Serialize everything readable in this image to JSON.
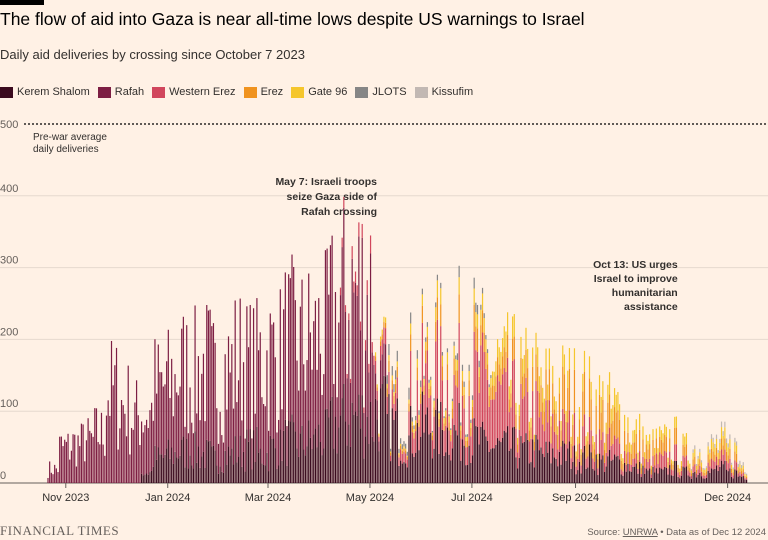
{
  "header": {
    "title": "The flow of aid into Gaza is near all-time lows despite US warnings to Israel",
    "subtitle": "Daily aid deliveries by crossing since October 7 2023"
  },
  "legend": [
    {
      "label": "Kerem Shalom",
      "color": "#3b0a1e"
    },
    {
      "label": "Rafah",
      "color": "#7d1e43"
    },
    {
      "label": "Western Erez",
      "color": "#d1465c"
    },
    {
      "label": "Erez",
      "color": "#f0931f"
    },
    {
      "label": "Gate 96",
      "color": "#f5c62c"
    },
    {
      "label": "JLOTS",
      "color": "#868686"
    },
    {
      "label": "Kissufim",
      "color": "#c2b8b3"
    }
  ],
  "chart_data": {
    "type": "bar",
    "stacked": true,
    "title": "The flow of aid into Gaza is near all-time lows despite US warnings to Israel",
    "subtitle": "Daily aid deliveries by crossing since October 7 2023",
    "start_date": "2023-10-07",
    "end_date": "2024-12-12",
    "ylim": [
      0,
      500
    ],
    "yticks": [
      0,
      100,
      200,
      300,
      400,
      500
    ],
    "yticklabels": [
      "0",
      "100",
      "200",
      "300",
      "400",
      "500"
    ],
    "xticks": [
      {
        "label": "Nov 2023",
        "date": "2023-11-01"
      },
      {
        "label": "Jan 2024",
        "date": "2024-01-01"
      },
      {
        "label": "Mar 2024",
        "date": "2024-03-01"
      },
      {
        "label": "May 2024",
        "date": "2024-05-01"
      },
      {
        "label": "Jul 2024",
        "date": "2024-07-01"
      },
      {
        "label": "Sep 2024",
        "date": "2024-09-01"
      },
      {
        "label": "Dec 2024",
        "date": "2024-12-01"
      }
    ],
    "reference_line": {
      "value": 500,
      "label_lines": [
        "Pre-war average",
        "daily deliveries"
      ]
    },
    "annotations": [
      {
        "lines": [
          "May 7: Israeli troops",
          "seize Gaza side of",
          "Rafah crossing"
        ],
        "date": "2024-05-07"
      },
      {
        "lines": [
          "Oct 13: US urges",
          "Israel to improve",
          "humanitarian",
          "assistance"
        ],
        "date": "2024-10-13"
      }
    ],
    "weekly_approx": {
      "note": "approximate average daily deliveries per week, read from the chart",
      "week_starts": [
        "2023-10-21",
        "2023-10-28",
        "2023-11-04",
        "2023-11-11",
        "2023-11-18",
        "2023-11-25",
        "2023-12-02",
        "2023-12-09",
        "2023-12-16",
        "2023-12-23",
        "2023-12-30",
        "2024-01-06",
        "2024-01-13",
        "2024-01-20",
        "2024-01-27",
        "2024-02-03",
        "2024-02-10",
        "2024-02-17",
        "2024-02-24",
        "2024-03-02",
        "2024-03-09",
        "2024-03-16",
        "2024-03-23",
        "2024-03-30",
        "2024-04-06",
        "2024-04-13",
        "2024-04-20",
        "2024-04-27",
        "2024-05-04",
        "2024-05-11",
        "2024-05-18",
        "2024-05-25",
        "2024-06-01",
        "2024-06-08",
        "2024-06-15",
        "2024-06-22",
        "2024-06-29",
        "2024-07-06",
        "2024-07-13",
        "2024-07-20",
        "2024-07-27",
        "2024-08-03",
        "2024-08-10",
        "2024-08-17",
        "2024-08-24",
        "2024-08-31",
        "2024-09-07",
        "2024-09-14",
        "2024-09-21",
        "2024-09-28",
        "2024-10-05",
        "2024-10-12",
        "2024-10-19",
        "2024-10-26",
        "2024-11-02",
        "2024-11-09",
        "2024-11-16",
        "2024-11-23",
        "2024-11-30",
        "2024-12-07"
      ],
      "series": [
        {
          "name": "Kerem Shalom",
          "values": [
            0,
            0,
            0,
            0,
            0,
            0,
            0,
            0,
            15,
            35,
            40,
            45,
            45,
            40,
            35,
            40,
            45,
            50,
            40,
            50,
            60,
            55,
            60,
            65,
            80,
            90,
            95,
            90,
            100,
            80,
            60,
            70,
            80,
            75,
            70,
            70,
            60,
            55,
            50,
            50,
            45,
            45,
            40,
            40,
            40,
            35,
            35,
            30,
            30,
            25,
            20,
            15,
            15,
            20,
            15,
            15,
            15,
            20,
            15,
            10
          ]
        },
        {
          "name": "Rafah",
          "values": [
            20,
            50,
            55,
            60,
            70,
            130,
            110,
            95,
            85,
            100,
            100,
            115,
            110,
            125,
            115,
            120,
            130,
            115,
            135,
            130,
            140,
            140,
            140,
            140,
            150,
            160,
            170,
            165,
            30,
            0,
            0,
            0,
            0,
            0,
            0,
            0,
            0,
            0,
            0,
            0,
            0,
            0,
            0,
            0,
            0,
            0,
            0,
            0,
            0,
            0,
            0,
            0,
            0,
            0,
            0,
            0,
            0,
            0,
            0,
            0
          ]
        },
        {
          "name": "Western Erez",
          "values": [
            0,
            0,
            0,
            0,
            0,
            0,
            0,
            0,
            0,
            0,
            0,
            0,
            0,
            0,
            0,
            0,
            0,
            0,
            0,
            0,
            0,
            0,
            0,
            0,
            0,
            10,
            15,
            20,
            15,
            20,
            30,
            50,
            60,
            70,
            60,
            70,
            80,
            80,
            70,
            60,
            50,
            50,
            40,
            40,
            30,
            30,
            25,
            25,
            20,
            15,
            10,
            10,
            15,
            15,
            10,
            10,
            10,
            10,
            10,
            5
          ]
        },
        {
          "name": "Erez",
          "values": [
            0,
            0,
            0,
            0,
            0,
            0,
            0,
            0,
            0,
            0,
            0,
            0,
            0,
            0,
            0,
            0,
            0,
            0,
            0,
            0,
            0,
            0,
            0,
            0,
            0,
            0,
            0,
            0,
            5,
            10,
            10,
            15,
            15,
            20,
            20,
            25,
            25,
            20,
            20,
            20,
            25,
            25,
            30,
            35,
            40,
            40,
            35,
            35,
            30,
            25,
            20,
            15,
            15,
            15,
            10,
            10,
            10,
            10,
            10,
            5
          ]
        },
        {
          "name": "Gate 96",
          "values": [
            0,
            0,
            0,
            0,
            0,
            0,
            0,
            0,
            0,
            0,
            0,
            0,
            0,
            0,
            0,
            0,
            0,
            0,
            0,
            0,
            0,
            0,
            0,
            0,
            0,
            0,
            0,
            0,
            5,
            5,
            5,
            10,
            10,
            15,
            15,
            15,
            15,
            15,
            20,
            20,
            20,
            20,
            20,
            20,
            20,
            20,
            20,
            20,
            20,
            20,
            15,
            10,
            10,
            10,
            10,
            10,
            10,
            10,
            10,
            5
          ]
        },
        {
          "name": "JLOTS",
          "values": [
            0,
            0,
            0,
            0,
            0,
            0,
            0,
            0,
            0,
            0,
            0,
            0,
            0,
            0,
            0,
            0,
            0,
            0,
            0,
            0,
            0,
            0,
            0,
            0,
            0,
            0,
            0,
            0,
            0,
            10,
            15,
            10,
            5,
            5,
            5,
            10,
            10,
            5,
            0,
            0,
            0,
            0,
            0,
            0,
            0,
            0,
            0,
            0,
            0,
            0,
            0,
            0,
            0,
            0,
            0,
            0,
            0,
            0,
            0,
            0
          ]
        },
        {
          "name": "Kissufim",
          "values": [
            0,
            0,
            0,
            0,
            0,
            0,
            0,
            0,
            0,
            0,
            0,
            0,
            0,
            0,
            0,
            0,
            0,
            0,
            0,
            0,
            0,
            0,
            0,
            0,
            0,
            0,
            0,
            0,
            0,
            0,
            0,
            0,
            0,
            0,
            0,
            0,
            0,
            0,
            0,
            0,
            0,
            0,
            0,
            0,
            0,
            0,
            0,
            0,
            0,
            0,
            0,
            0,
            0,
            0,
            0,
            5,
            5,
            5,
            5,
            5
          ]
        }
      ]
    }
  },
  "footer": {
    "brand": "FINANCIAL TIMES",
    "source_prefix": "Source: ",
    "source_link": "UNRWA",
    "source_suffix": " • Data as of Dec 12 2024"
  }
}
